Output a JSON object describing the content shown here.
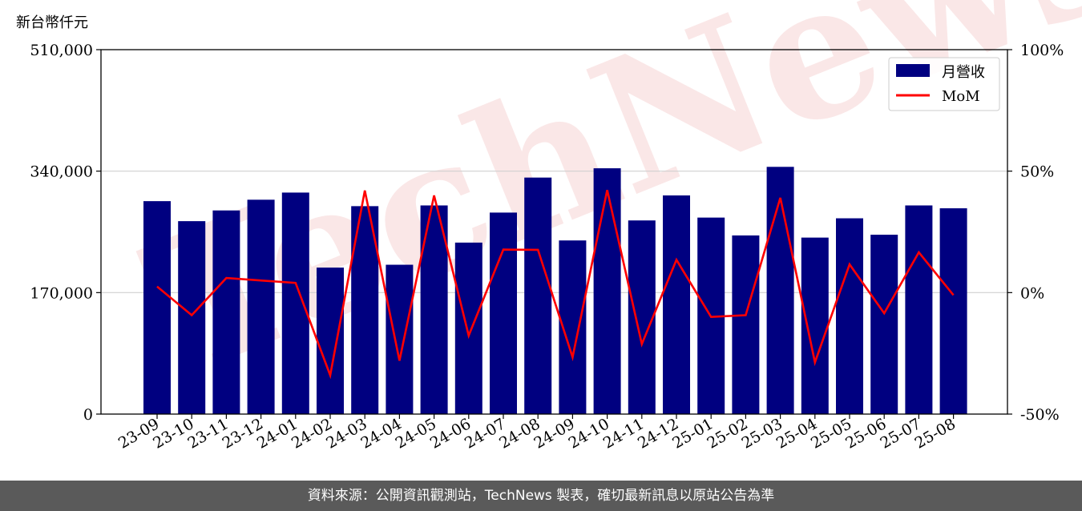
{
  "chart_data": {
    "type": "bar",
    "y_unit_label": "新台幣仟元",
    "categories": [
      "23-09",
      "23-10",
      "23-11",
      "23-12",
      "24-01",
      "24-02",
      "24-03",
      "24-04",
      "24-05",
      "24-06",
      "24-07",
      "24-08",
      "24-09",
      "24-10",
      "24-11",
      "24-12",
      "25-01",
      "25-02",
      "25-03",
      "25-04",
      "25-05",
      "25-06",
      "25-07",
      "25-08"
    ],
    "series": [
      {
        "name": "月營收",
        "kind": "bar",
        "axis": "left",
        "color": "#000080",
        "values": [
          298000,
          270000,
          285000,
          300000,
          310000,
          205000,
          291000,
          209000,
          292000,
          240000,
          282000,
          331000,
          243000,
          344000,
          271000,
          306000,
          275000,
          250000,
          346000,
          247000,
          274000,
          251000,
          292000,
          288000
        ]
      },
      {
        "name": "MoM",
        "kind": "line",
        "axis": "right",
        "color": "#ff0000",
        "values": [
          2.5,
          -9.3,
          6.0,
          5.0,
          4.0,
          -34.0,
          42.0,
          -28.0,
          40.0,
          -17.7,
          17.7,
          17.6,
          -26.6,
          42.2,
          -21.2,
          13.5,
          -10.0,
          -9.3,
          39.0,
          -28.7,
          11.6,
          -8.5,
          16.6,
          -1.0
        ]
      }
    ],
    "y_left": {
      "lim": [
        0,
        510000
      ],
      "ticks": [
        0,
        170000,
        340000,
        510000
      ],
      "tick_labels": [
        "0",
        "170,000",
        "340,000",
        "510,000"
      ]
    },
    "y_right": {
      "lim": [
        -50,
        100
      ],
      "ticks": [
        -50,
        0,
        50,
        100
      ],
      "tick_labels": [
        "-50%",
        "0%",
        "50%",
        "100%"
      ]
    },
    "grid": "horizontal",
    "legend_position": "top-right",
    "watermark": "TechNews"
  },
  "footer": {
    "source_text": "資料來源：公開資訊觀測站，TechNews 製表，確切最新訊息以原站公告為準"
  }
}
